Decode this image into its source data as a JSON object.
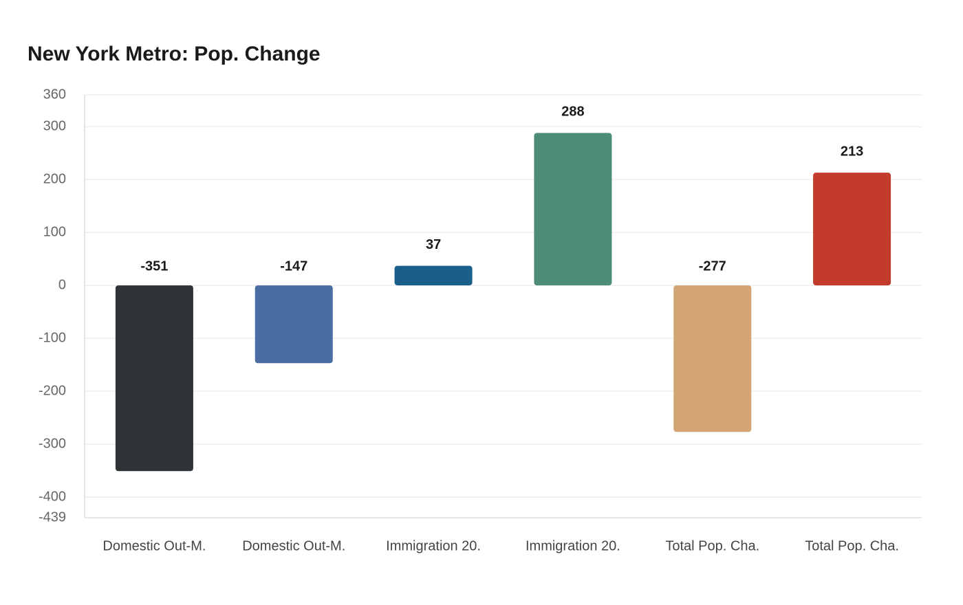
{
  "chart_data": {
    "type": "bar",
    "title": "New York Metro: Pop. Change",
    "categories": [
      "Domestic Out-M.",
      "Domestic Out-M.",
      "Immigration 20.",
      "Immigration 20.",
      "Total Pop. Cha.",
      "Total Pop. Cha."
    ],
    "values": [
      -351,
      -147,
      37,
      288,
      -277,
      213
    ],
    "colors": [
      "#2e3436",
      "#4a6da4",
      "#1a5f8a",
      "#4e8c7a",
      "#d4a574",
      "#c23b2c"
    ],
    "ylim": [
      -439,
      360
    ],
    "yticks": [
      360,
      300,
      200,
      100,
      0,
      -100,
      -200,
      -300,
      -400,
      -439
    ],
    "grid": true
  }
}
